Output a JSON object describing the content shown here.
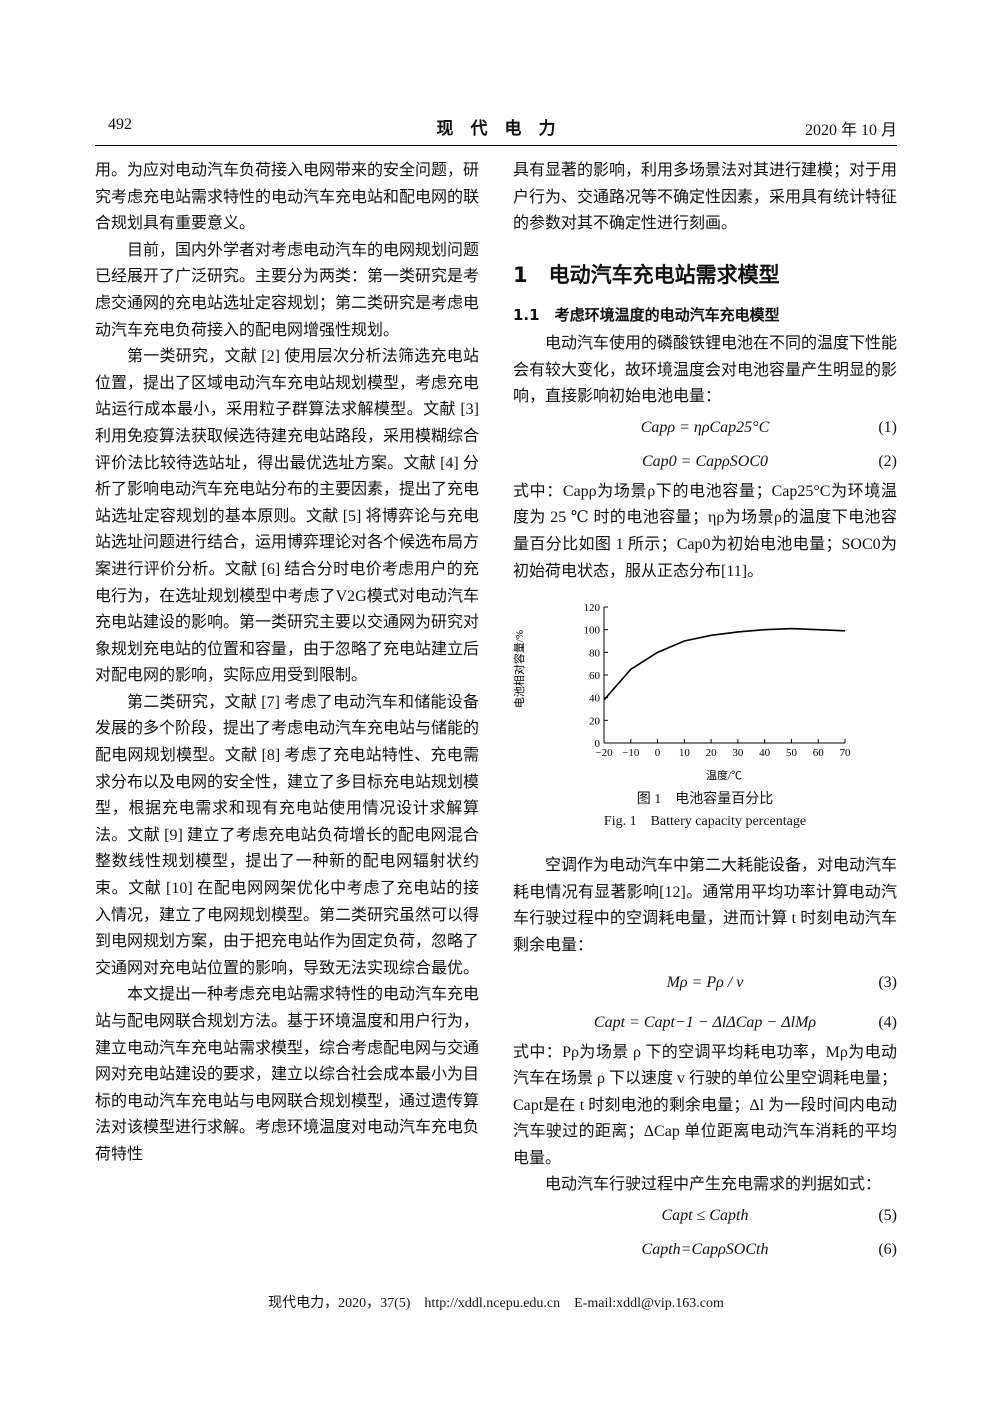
{
  "header": {
    "page_number": "492",
    "journal": "现　代　电　力",
    "issue_date": "2020 年 10 月"
  },
  "left_column": {
    "paragraphs": [
      "用。为应对电动汽车负荷接入电网带来的安全问题，研究考虑充电站需求特性的电动汽车充电站和配电网的联合规划具有重要意义。",
      "目前，国内外学者对考虑电动汽车的电网规划问题已经展开了广泛研究。主要分为两类：第一类研究是考虑交通网的充电站选址定容规划；第二类研究是考虑电动汽车充电负荷接入的配电网增强性规划。",
      "第一类研究，文献 [2] 使用层次分析法筛选充电站位置，提出了区域电动汽车充电站规划模型，考虑充电站运行成本最小，采用粒子群算法求解模型。文献 [3] 利用免疫算法获取候选待建充电站路段，采用模糊综合评价法比较待选站址，得出最优选址方案。文献 [4] 分析了影响电动汽车充电站分布的主要因素，提出了充电站选址定容规划的基本原则。文献 [5] 将博弈论与充电站选址问题进行结合，运用博弈理论对各个候选布局方案进行评价分析。文献 [6] 结合分时电价考虑用户的充电行为，在选址规划模型中考虑了V2G模式对电动汽车充电站建设的影响。第一类研究主要以交通网为研究对象规划充电站的位置和容量，由于忽略了充电站建立后对配电网的影响，实际应用受到限制。",
      "第二类研究，文献 [7] 考虑了电动汽车和储能设备发展的多个阶段，提出了考虑电动汽车充电站与储能的配电网规划模型。文献 [8] 考虑了充电站特性、充电需求分布以及电网的安全性，建立了多目标充电站规划模型，根据充电需求和现有充电站使用情况设计求解算法。文献 [9] 建立了考虑充电站负荷增长的配电网混合整数线性规划模型，提出了一种新的配电网辐射状约束。文献 [10] 在配电网网架优化中考虑了充电站的接入情况，建立了电网规划模型。第二类研究虽然可以得到电网规划方案，由于把充电站作为固定负荷，忽略了交通网对充电站位置的影响，导致无法实现综合最优。",
      "本文提出一种考虑充电站需求特性的电动汽车充电站与配电网联合规划方法。基于环境温度和用户行为，建立电动汽车充电站需求模型，综合考虑配电网与交通网对充电站建设的要求，建立以综合社会成本最小为目标的电动汽车充电站与电网联合规划模型，通过遗传算法对该模型进行求解。考虑环境温度对电动汽车充电负荷特性"
    ]
  },
  "right_column": {
    "paragraph_0": "具有显著的影响，利用多场景法对其进行建模；对于用户行为、交通路况等不确定性因素，采用具有统计特征的参数对其不确定性进行刻画。",
    "section_heading": "1　电动汽车充电站需求模型",
    "subsection_heading": "1.1　考虑环境温度的电动汽车充电模型",
    "paragraph_1": "电动汽车使用的磷酸铁锂电池在不同的温度下性能会有较大变化，故环境温度会对电池容量产生明显的影响，直接影响初始电池电量：",
    "equations_a": [
      {
        "formula": "Capρ = ηρCap25°C",
        "number": "(1)"
      },
      {
        "formula": "Cap0 = CapρSOC0",
        "number": "(2)"
      }
    ],
    "paragraph_2": "式中：Capρ为场景ρ下的电池容量；Cap25°C为环境温度为 25 ℃ 时的电池容量；ηρ为场景ρ的温度下电池容量百分比如图 1 所示；Cap0为初始电池电量；SOC0为初始荷电状态，服从正态分布[11]。",
    "figure_caption_cn": "图 1　电池容量百分比",
    "figure_caption_en": "Fig. 1　Battery capacity percentage",
    "paragraph_3": "空调作为电动汽车中第二大耗能设备，对电动汽车耗电情况有显著影响[12]。通常用平均功率计算电动汽车行驶过程中的空调耗电量，进而计算 t 时刻电动汽车剩余电量：",
    "equations_b": [
      {
        "formula": "Mρ = Pρ / v",
        "number": "(3)"
      },
      {
        "formula": "Capt = Capt−1 − ΔlΔCap − ΔlMρ",
        "number": "(4)"
      }
    ],
    "paragraph_4": "式中：Pρ为场景 ρ 下的空调平均耗电功率，Mρ为电动汽车在场景 ρ 下以速度 v 行驶的单位公里空调耗电量；Capt是在 t 时刻电池的剩余电量；Δl 为一段时间内电动汽车驶过的距离；ΔCap 单位距离电动汽车消耗的平均电量。",
    "paragraph_5": "电动汽车行驶过程中产生充电需求的判据如式：",
    "equations_c": [
      {
        "formula": "Capt ≤ Capth",
        "number": "(5)"
      },
      {
        "formula": "Capth=CapρSOCth",
        "number": "(6)"
      }
    ]
  },
  "chart_data": {
    "type": "line",
    "xlabel": "温度/℃",
    "ylabel": "电池相对容量/%",
    "x": [
      -20,
      -10,
      0,
      10,
      20,
      30,
      40,
      50,
      60,
      70
    ],
    "values": [
      38,
      65,
      80,
      90,
      95,
      98,
      100,
      101,
      100,
      99
    ],
    "color": "#000000",
    "xlim": [
      -20,
      70
    ],
    "xticks": [
      {
        "value": -20,
        "label": "−20"
      },
      {
        "value": -10,
        "label": "−10"
      },
      0,
      10,
      20,
      30,
      40,
      50,
      60,
      70
    ],
    "ylim": [
      0,
      120
    ],
    "yticks": [
      0,
      20,
      40,
      60,
      80,
      100,
      120
    ]
  },
  "footer": "现代电力，2020，37(5)　http://xddl.ncepu.edu.cn　E-mail:xddl@vip.163.com"
}
